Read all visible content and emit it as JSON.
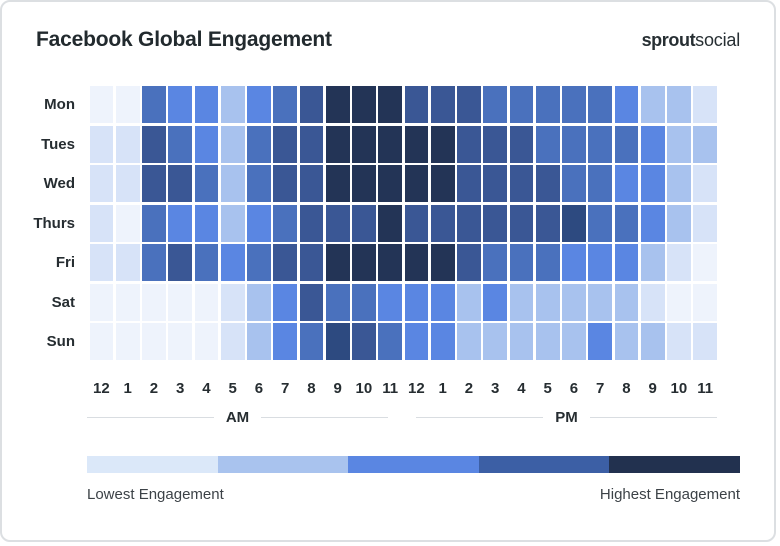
{
  "card": {
    "title": "Facebook Global Engagement",
    "logo": {
      "bold": "sprout",
      "light": "social"
    }
  },
  "chart_data": {
    "type": "heatmap",
    "title": "Facebook Global Engagement",
    "rows": [
      "Mon",
      "Tues",
      "Wed",
      "Thurs",
      "Fri",
      "Sat",
      "Sun"
    ],
    "columns": [
      "12",
      "1",
      "2",
      "3",
      "4",
      "5",
      "6",
      "7",
      "8",
      "9",
      "10",
      "11",
      "12",
      "1",
      "2",
      "3",
      "4",
      "5",
      "6",
      "7",
      "8",
      "9",
      "10",
      "11"
    ],
    "column_groups": [
      {
        "label": "AM",
        "span": 12
      },
      {
        "label": "PM",
        "span": 12
      }
    ],
    "value_meaning": "engagement level, 1 = lowest, 8 = highest",
    "palette": [
      "#eef3fc",
      "#d7e3f8",
      "#a8c2ee",
      "#5a86e2",
      "#4a71bd",
      "#3a5795",
      "#2d4a80",
      "#233456"
    ],
    "values": [
      [
        1,
        1,
        5,
        4,
        4,
        3,
        4,
        5,
        6,
        8,
        8,
        8,
        6,
        6,
        6,
        5,
        5,
        5,
        5,
        5,
        4,
        3,
        3,
        2
      ],
      [
        2,
        2,
        6,
        5,
        4,
        3,
        5,
        6,
        6,
        8,
        8,
        8,
        8,
        8,
        6,
        6,
        6,
        5,
        5,
        5,
        5,
        4,
        3,
        3
      ],
      [
        2,
        2,
        6,
        6,
        5,
        3,
        5,
        6,
        6,
        8,
        8,
        8,
        8,
        8,
        6,
        6,
        6,
        6,
        5,
        5,
        4,
        4,
        3,
        2
      ],
      [
        2,
        1,
        5,
        4,
        4,
        3,
        4,
        5,
        6,
        6,
        6,
        8,
        6,
        6,
        6,
        6,
        6,
        6,
        7,
        5,
        5,
        4,
        3,
        2
      ],
      [
        2,
        2,
        5,
        6,
        5,
        4,
        5,
        6,
        6,
        8,
        8,
        8,
        8,
        8,
        6,
        5,
        5,
        5,
        4,
        4,
        4,
        3,
        2,
        1
      ],
      [
        1,
        1,
        1,
        1,
        1,
        2,
        3,
        4,
        6,
        5,
        5,
        4,
        4,
        4,
        3,
        4,
        3,
        3,
        3,
        3,
        3,
        2,
        1,
        1
      ],
      [
        1,
        1,
        1,
        1,
        1,
        2,
        3,
        4,
        5,
        7,
        6,
        5,
        4,
        4,
        3,
        3,
        3,
        3,
        3,
        4,
        3,
        3,
        2,
        2
      ]
    ]
  },
  "legend": {
    "colors": [
      "#dbe8f9",
      "#a9c3ee",
      "#5a86e2",
      "#3c5fa5",
      "#22314f"
    ],
    "low_label": "Lowest Engagement",
    "high_label": "Highest Engagement"
  }
}
